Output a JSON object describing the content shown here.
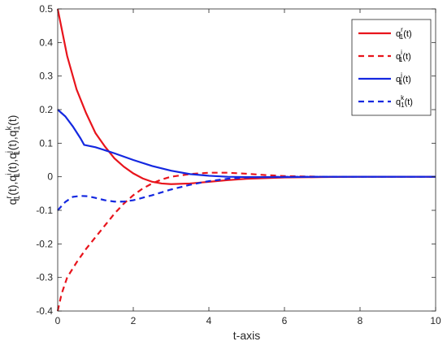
{
  "chart_data": {
    "type": "line",
    "title": "",
    "xlabel": "t-axis",
    "ylabel_parts": [
      {
        "base": "q",
        "sup": "r",
        "sub": "1",
        "tail": "(t),"
      },
      {
        "base": "q",
        "sup": "i",
        "sub": "1",
        "tail": "(t),"
      },
      {
        "base": "q",
        "sup": "j",
        "sub": "1",
        "tail": "(t),"
      },
      {
        "base": "q",
        "sup": "k",
        "sub": "1",
        "tail": "(t)"
      }
    ],
    "xlim": [
      0,
      10
    ],
    "ylim": [
      -0.4,
      0.5
    ],
    "xticks": [
      0,
      2,
      4,
      6,
      8,
      10
    ],
    "yticks": [
      -0.4,
      -0.3,
      -0.2,
      -0.1,
      0,
      0.1,
      0.2,
      0.3,
      0.4,
      0.5
    ],
    "xtick_labels": [
      "0",
      "2",
      "4",
      "6",
      "8",
      "10"
    ],
    "ytick_labels": [
      "-0.4",
      "-0.3",
      "-0.2",
      "-0.1",
      "0",
      "0.1",
      "0.2",
      "0.3",
      "0.4",
      "0.5"
    ],
    "grid": false,
    "legend_position": "top-right",
    "series": [
      {
        "name_base": "q",
        "name_sup": "r",
        "name_sub": "1",
        "name_tail": "(t)",
        "color": "#e8141c",
        "dash": "solid",
        "x": [
          0,
          0.25,
          0.5,
          0.75,
          1.0,
          1.25,
          1.5,
          1.75,
          2.0,
          2.25,
          2.5,
          2.75,
          3.0,
          3.5,
          4.0,
          4.5,
          5.0,
          6.0,
          7.0,
          8.0,
          9.0,
          10.0
        ],
        "y": [
          0.5,
          0.36,
          0.26,
          0.19,
          0.13,
          0.09,
          0.055,
          0.03,
          0.01,
          -0.005,
          -0.015,
          -0.02,
          -0.022,
          -0.02,
          -0.015,
          -0.01,
          -0.006,
          -0.002,
          -0.001,
          0,
          0,
          0
        ]
      },
      {
        "name_base": "q",
        "name_sup": "i",
        "name_sub": "1",
        "name_tail": "(t)",
        "color": "#e8141c",
        "dash": "dashed",
        "x": [
          0,
          0.1,
          0.25,
          0.5,
          0.75,
          1.0,
          1.25,
          1.5,
          1.75,
          2.0,
          2.25,
          2.5,
          2.75,
          3.0,
          3.5,
          4.0,
          4.5,
          5.0,
          5.5,
          6.0,
          7.0,
          8.0,
          9.0,
          10.0
        ],
        "y": [
          -0.4,
          -0.35,
          -0.3,
          -0.255,
          -0.215,
          -0.18,
          -0.145,
          -0.11,
          -0.08,
          -0.055,
          -0.035,
          -0.02,
          -0.008,
          0.0,
          0.008,
          0.012,
          0.012,
          0.009,
          0.005,
          0.002,
          0.0,
          0,
          0,
          0
        ]
      },
      {
        "name_base": "q",
        "name_sup": "j",
        "name_sub": "1",
        "name_tail": "(t)",
        "color": "#1428e0",
        "dash": "solid",
        "x": [
          0,
          0.2,
          0.4,
          0.6,
          0.7,
          1.0,
          1.5,
          2.0,
          2.5,
          3.0,
          3.5,
          4.0,
          4.5,
          5.0,
          6.0,
          7.0,
          8.0,
          9.0,
          10.0
        ],
        "y": [
          0.2,
          0.18,
          0.15,
          0.115,
          0.095,
          0.088,
          0.07,
          0.05,
          0.032,
          0.018,
          0.008,
          0.003,
          0.0,
          -0.001,
          -0.001,
          0,
          0,
          0,
          0
        ]
      },
      {
        "name_base": "q",
        "name_sup": "k",
        "name_sub": "1",
        "name_tail": "(t)",
        "color": "#1428e0",
        "dash": "dashed",
        "x": [
          0,
          0.2,
          0.4,
          0.6,
          0.8,
          1.0,
          1.25,
          1.5,
          1.75,
          2.0,
          2.5,
          3.0,
          3.5,
          4.0,
          4.5,
          5.0,
          6.0,
          7.0,
          8.0,
          9.0,
          10.0
        ],
        "y": [
          -0.1,
          -0.075,
          -0.06,
          -0.057,
          -0.058,
          -0.063,
          -0.07,
          -0.074,
          -0.074,
          -0.07,
          -0.055,
          -0.038,
          -0.024,
          -0.013,
          -0.006,
          -0.002,
          0,
          0,
          0,
          0,
          0
        ]
      }
    ]
  }
}
